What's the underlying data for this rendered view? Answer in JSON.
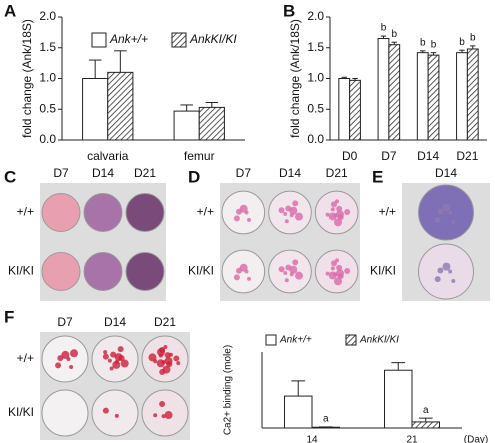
{
  "chart_data": [
    {
      "type": "bar",
      "panel_label": "A",
      "ylabel": "fold change (Ank/18S)",
      "categories": [
        "calvaria",
        "femur"
      ],
      "series": [
        {
          "name": "Ank+/+",
          "fill": "#ffffff",
          "hatch": false,
          "values": [
            1.0,
            0.47
          ],
          "errors": [
            0.3,
            0.1
          ]
        },
        {
          "name": "AnkKI/KI",
          "fill": "#ffffff",
          "hatch": true,
          "values": [
            1.1,
            0.53
          ],
          "errors": [
            0.35,
            0.08
          ]
        }
      ],
      "ylim": [
        0,
        2.0
      ],
      "yticks": [
        {
          "value": 0,
          "label": "0.0"
        },
        0.5,
        {
          "value": 1,
          "label": "1.0"
        },
        1.5,
        {
          "value": 2,
          "label": "2.0"
        }
      ],
      "legend": true
    },
    {
      "type": "bar",
      "panel_label": "B",
      "ylabel": "fold change (Ank/18S)",
      "categories": [
        "D0",
        "D7",
        "D14",
        "D21"
      ],
      "series": [
        {
          "fill": "#ffffff",
          "hatch": false,
          "values": [
            1.0,
            1.65,
            1.42,
            1.42
          ],
          "errors": [
            0.02,
            0.04,
            0.03,
            0.04
          ],
          "bar_labels": [
            null,
            "b",
            "b",
            "b"
          ]
        },
        {
          "fill": "#ffffff",
          "hatch": true,
          "values": [
            0.97,
            1.55,
            1.38,
            1.48
          ],
          "errors": [
            0.03,
            0.04,
            0.04,
            0.05
          ],
          "bar_labels": [
            null,
            "b",
            "b",
            "b"
          ]
        }
      ],
      "ylim": [
        0,
        2.0
      ],
      "yticks": [
        {
          "value": 0,
          "label": "0.0"
        },
        0.5,
        {
          "value": 1,
          "label": "1.0"
        },
        1.5,
        {
          "value": 2,
          "label": "2.0"
        }
      ],
      "legend": false
    },
    {
      "type": "bar",
      "panel_label": "F",
      "ylabel": "Ca2+ binding (mole)",
      "xlabel": "(Day)",
      "categories": [
        "14",
        "21"
      ],
      "series": [
        {
          "name": "Ank+/+",
          "fill": "#ffffff",
          "hatch": false,
          "values": [
            2.1,
            3.8
          ],
          "errors": [
            1.0,
            0.5
          ],
          "bar_labels": [
            null,
            null
          ]
        },
        {
          "name": "AnkKI/KI",
          "fill": "#ffffff",
          "hatch": true,
          "values": [
            0.05,
            0.4
          ],
          "errors": [
            0.02,
            0.25
          ],
          "bar_labels": [
            "a",
            "a"
          ]
        }
      ],
      "ylim": [
        0,
        5
      ],
      "legend": true
    }
  ],
  "photo_panels": [
    {
      "letter": "C",
      "columns": [
        "D7",
        "D14",
        "D21"
      ],
      "rows": [
        "+/+",
        "KI/KI"
      ]
    },
    {
      "letter": "D",
      "columns": [
        "D7",
        "D14",
        "D21"
      ],
      "rows": [
        "+/+",
        "KI/KI"
      ]
    },
    {
      "letter": "E",
      "columns": [
        "D14"
      ],
      "rows": [
        "+/+",
        "KI/KI"
      ]
    },
    {
      "columns": [
        "D7",
        "D14",
        "D21"
      ],
      "rows": [
        "+/+",
        "KI/KI"
      ]
    }
  ]
}
